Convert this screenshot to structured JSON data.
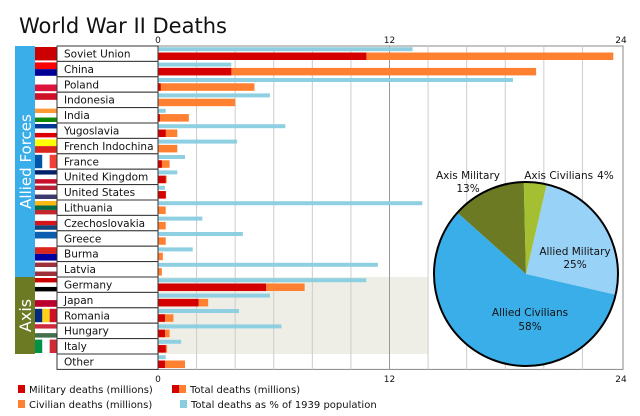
{
  "chart_data": {
    "type": "bar",
    "title": "World War II Deaths",
    "xlim": [
      0,
      24
    ],
    "x_ticks": [
      "0",
      "12",
      "24"
    ],
    "grid": true,
    "groups": [
      {
        "label": "Allied Forces",
        "color": "#3aaee8"
      },
      {
        "label": "Axis",
        "color": "#6b7a23"
      }
    ],
    "categories": [
      "Soviet Union",
      "China",
      "Poland",
      "Indonesia",
      "India",
      "Yugoslavia",
      "French Indochina",
      "France",
      "United Kingdom",
      "United States",
      "Lithuania",
      "Czechoslovakia",
      "Greece",
      "Burma",
      "Latvia",
      "Germany",
      "Japan",
      "Romania",
      "Hungary",
      "Italy",
      "Other"
    ],
    "category_group": [
      "Allied Forces",
      "Allied Forces",
      "Allied Forces",
      "Allied Forces",
      "Allied Forces",
      "Allied Forces",
      "Allied Forces",
      "Allied Forces",
      "Allied Forces",
      "Allied Forces",
      "Allied Forces",
      "Allied Forces",
      "Allied Forces",
      "Allied Forces",
      "Allied Forces",
      "Axis",
      "Axis",
      "Axis",
      "Axis",
      "Axis",
      "Other"
    ],
    "series": [
      {
        "name": "Military deaths (millions)",
        "color": "#d40000",
        "values": [
          10.8,
          3.8,
          0.14,
          0,
          0.1,
          0.4,
          0,
          0.2,
          0.4,
          0.4,
          0,
          0,
          0,
          0,
          0,
          5.6,
          2.1,
          0.36,
          0.36,
          0.4,
          0.36
        ]
      },
      {
        "name": "Total deaths (millions)",
        "color": "#ff8030",
        "values": [
          23.6,
          19.6,
          5.0,
          4.0,
          1.6,
          1.0,
          1.0,
          0.6,
          0.45,
          0.42,
          0.4,
          0.4,
          0.4,
          0.25,
          0.2,
          7.6,
          2.6,
          0.8,
          0.6,
          0.47,
          1.4
        ]
      },
      {
        "name": "Civilian deaths (millions)",
        "color": "#ff8030"
      },
      {
        "name": "Total deaths as % of 1939 population",
        "color": "#88cde0",
        "values": [
          13.2,
          3.8,
          18.4,
          5.8,
          0.4,
          6.6,
          4.1,
          1.4,
          1.0,
          0.36,
          13.7,
          2.3,
          4.4,
          1.8,
          11.4,
          10.8,
          5.8,
          4.2,
          6.4,
          1.2,
          0.4
        ]
      }
    ],
    "legend": {
      "placement": "bottom",
      "items": [
        "Military deaths (millions)",
        "Total deaths (millions)",
        "Civilian deaths (millions)",
        "Total deaths as % of 1939 population"
      ]
    },
    "pie": {
      "type": "pie",
      "slices": [
        {
          "label": "Allied Military",
          "pct_label": "25%",
          "value": 25,
          "color": "#99d2f7"
        },
        {
          "label": "Allied Civilians",
          "pct_label": "58%",
          "value": 58,
          "color": "#3aaee8"
        },
        {
          "label": "Axis Military",
          "pct_label": "13%",
          "value": 13,
          "color": "#6b7a23"
        },
        {
          "label": "Axis Civilians",
          "pct_label": "4%",
          "value": 4,
          "color": "#a4c032"
        }
      ]
    },
    "flags": {
      "Soviet Union": [
        "#cc0000"
      ],
      "China": [
        "#fe0000",
        "#000095"
      ],
      "Poland": [
        "#ffffff",
        "#dc143c"
      ],
      "Indonesia": [
        "#ce1126",
        "#ffffff"
      ],
      "India": [
        "#ff9933",
        "#ffffff",
        "#138808"
      ],
      "Yugoslavia": [
        "#003893",
        "#ffffff",
        "#de0000"
      ],
      "French Indochina": [
        "#ffff00",
        "#da251d"
      ],
      "France": [
        "#0055a4",
        "#ffffff",
        "#ef4135"
      ],
      "United Kingdom": [
        "#012169",
        "#ffffff",
        "#c8102e"
      ],
      "United States": [
        "#b22234",
        "#ffffff",
        "#3c3b6e"
      ],
      "Lithuania": [
        "#fdb913",
        "#006a44",
        "#c1272d"
      ],
      "Czechoslovakia": [
        "#ffffff",
        "#d7141a",
        "#11457e"
      ],
      "Greece": [
        "#0d5eaf",
        "#ffffff"
      ],
      "Burma": [
        "#da251d",
        "#0000a0"
      ],
      "Latvia": [
        "#9e3039",
        "#ffffff",
        "#9e3039"
      ],
      "Germany": [
        "#cc0000",
        "#ffffff",
        "#000000"
      ],
      "Japan": [
        "#ffffff",
        "#bc002d"
      ],
      "Romania": [
        "#002b7f",
        "#fcd116",
        "#ce1126"
      ],
      "Hungary": [
        "#cd2a3e",
        "#ffffff",
        "#436f4d"
      ],
      "Italy": [
        "#009246",
        "#ffffff",
        "#ce2b37"
      ],
      "Other": [
        "#ffffff"
      ]
    }
  }
}
